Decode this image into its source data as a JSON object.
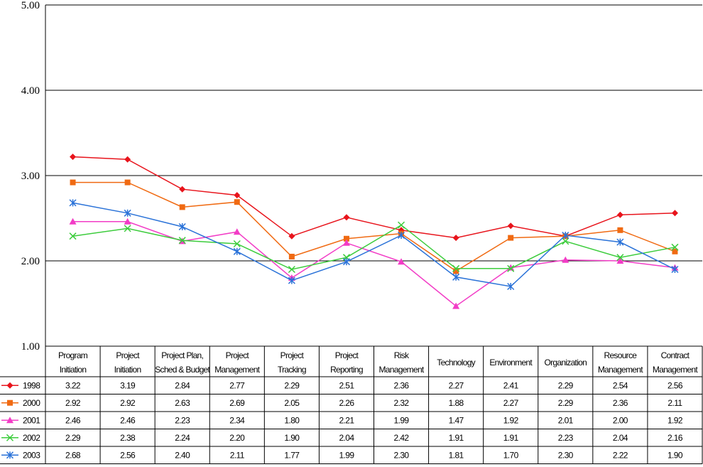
{
  "chart_data": {
    "type": "line",
    "title": "",
    "xlabel": "",
    "ylabel": "",
    "ylim": [
      1.0,
      5.0
    ],
    "yticks": [
      "1.00",
      "2.00",
      "3.00",
      "4.00",
      "5.00"
    ],
    "grid": "horizontal",
    "legend": "data-table-left",
    "categories": [
      [
        "Program",
        "Initiation"
      ],
      [
        "Project",
        "Initiation"
      ],
      [
        "Project Plan,",
        "Sched & Budget"
      ],
      [
        "Project",
        "Management"
      ],
      [
        "Project",
        "Tracking"
      ],
      [
        "Project",
        "Reporting"
      ],
      [
        "Risk",
        "Management"
      ],
      [
        "Technology"
      ],
      [
        "Environment"
      ],
      [
        "Organization"
      ],
      [
        "Resource",
        "Management"
      ],
      [
        "Contract",
        "Management"
      ]
    ],
    "series": [
      {
        "name": "1998",
        "color": "#e8141c",
        "marker": "diamond",
        "values": [
          3.22,
          3.19,
          2.84,
          2.77,
          2.29,
          2.51,
          2.36,
          2.27,
          2.41,
          2.29,
          2.54,
          2.56
        ],
        "labels": [
          "3.22",
          "3.19",
          "2.84",
          "2.77",
          "2.29",
          "2.51",
          "2.36",
          "2.27",
          "2.41",
          "2.29",
          "2.54",
          "2.56"
        ]
      },
      {
        "name": "2000",
        "color": "#f06a12",
        "marker": "square",
        "values": [
          2.92,
          2.92,
          2.63,
          2.69,
          2.05,
          2.26,
          2.32,
          1.88,
          2.27,
          2.29,
          2.36,
          2.11
        ],
        "labels": [
          "2.92",
          "2.92",
          "2.63",
          "2.69",
          "2.05",
          "2.26",
          "2.32",
          "1.88",
          "2.27",
          "2.29",
          "2.36",
          "2.11"
        ]
      },
      {
        "name": "2001",
        "color": "#f23cc6",
        "marker": "triangle",
        "values": [
          2.46,
          2.46,
          2.23,
          2.34,
          1.8,
          2.21,
          1.99,
          1.47,
          1.92,
          2.01,
          2.0,
          1.92
        ],
        "labels": [
          "2.46",
          "2.46",
          "2.23",
          "2.34",
          "1.80",
          "2.21",
          "1.99",
          "1.47",
          "1.92",
          "2.01",
          "2.00",
          "1.92"
        ]
      },
      {
        "name": "2002",
        "color": "#3ccc3c",
        "marker": "x",
        "values": [
          2.29,
          2.38,
          2.24,
          2.2,
          1.9,
          2.04,
          2.42,
          1.91,
          1.91,
          2.23,
          2.04,
          2.16
        ],
        "labels": [
          "2.29",
          "2.38",
          "2.24",
          "2.20",
          "1.90",
          "2.04",
          "2.42",
          "1.91",
          "1.91",
          "2.23",
          "2.04",
          "2.16"
        ]
      },
      {
        "name": "2003",
        "color": "#2a72d8",
        "marker": "star",
        "values": [
          2.68,
          2.56,
          2.4,
          2.11,
          1.77,
          1.99,
          2.3,
          1.81,
          1.7,
          2.3,
          2.22,
          1.9
        ],
        "labels": [
          "2.68",
          "2.56",
          "2.40",
          "2.11",
          "1.77",
          "1.99",
          "2.30",
          "1.81",
          "1.70",
          "2.30",
          "2.22",
          "1.90"
        ]
      }
    ]
  }
}
